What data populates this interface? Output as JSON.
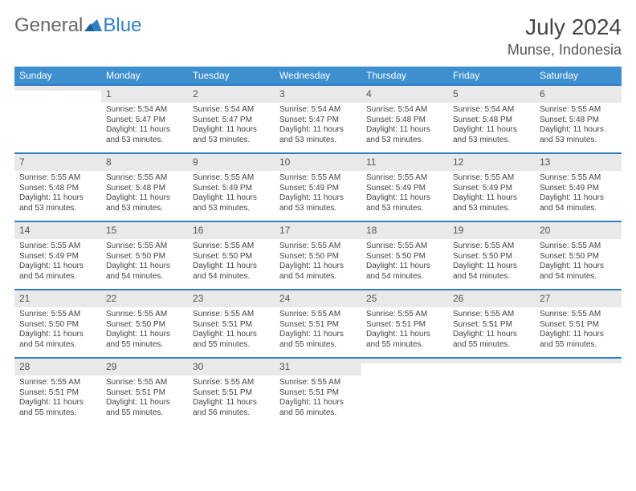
{
  "brand": {
    "part1": "General",
    "part2": "Blue"
  },
  "title": {
    "month": "July 2024",
    "location": "Munse, Indonesia"
  },
  "colors": {
    "header_bg": "#3d8fcf",
    "row_divider": "#2f7fc2",
    "daynum_bg": "#e9e9e9"
  },
  "weekdays": [
    "Sunday",
    "Monday",
    "Tuesday",
    "Wednesday",
    "Thursday",
    "Friday",
    "Saturday"
  ],
  "weeks": [
    [
      null,
      {
        "n": "1",
        "sr": "Sunrise: 5:54 AM",
        "ss": "Sunset: 5:47 PM",
        "dl": "Daylight: 11 hours and 53 minutes."
      },
      {
        "n": "2",
        "sr": "Sunrise: 5:54 AM",
        "ss": "Sunset: 5:47 PM",
        "dl": "Daylight: 11 hours and 53 minutes."
      },
      {
        "n": "3",
        "sr": "Sunrise: 5:54 AM",
        "ss": "Sunset: 5:47 PM",
        "dl": "Daylight: 11 hours and 53 minutes."
      },
      {
        "n": "4",
        "sr": "Sunrise: 5:54 AM",
        "ss": "Sunset: 5:48 PM",
        "dl": "Daylight: 11 hours and 53 minutes."
      },
      {
        "n": "5",
        "sr": "Sunrise: 5:54 AM",
        "ss": "Sunset: 5:48 PM",
        "dl": "Daylight: 11 hours and 53 minutes."
      },
      {
        "n": "6",
        "sr": "Sunrise: 5:55 AM",
        "ss": "Sunset: 5:48 PM",
        "dl": "Daylight: 11 hours and 53 minutes."
      }
    ],
    [
      {
        "n": "7",
        "sr": "Sunrise: 5:55 AM",
        "ss": "Sunset: 5:48 PM",
        "dl": "Daylight: 11 hours and 53 minutes."
      },
      {
        "n": "8",
        "sr": "Sunrise: 5:55 AM",
        "ss": "Sunset: 5:48 PM",
        "dl": "Daylight: 11 hours and 53 minutes."
      },
      {
        "n": "9",
        "sr": "Sunrise: 5:55 AM",
        "ss": "Sunset: 5:49 PM",
        "dl": "Daylight: 11 hours and 53 minutes."
      },
      {
        "n": "10",
        "sr": "Sunrise: 5:55 AM",
        "ss": "Sunset: 5:49 PM",
        "dl": "Daylight: 11 hours and 53 minutes."
      },
      {
        "n": "11",
        "sr": "Sunrise: 5:55 AM",
        "ss": "Sunset: 5:49 PM",
        "dl": "Daylight: 11 hours and 53 minutes."
      },
      {
        "n": "12",
        "sr": "Sunrise: 5:55 AM",
        "ss": "Sunset: 5:49 PM",
        "dl": "Daylight: 11 hours and 53 minutes."
      },
      {
        "n": "13",
        "sr": "Sunrise: 5:55 AM",
        "ss": "Sunset: 5:49 PM",
        "dl": "Daylight: 11 hours and 54 minutes."
      }
    ],
    [
      {
        "n": "14",
        "sr": "Sunrise: 5:55 AM",
        "ss": "Sunset: 5:49 PM",
        "dl": "Daylight: 11 hours and 54 minutes."
      },
      {
        "n": "15",
        "sr": "Sunrise: 5:55 AM",
        "ss": "Sunset: 5:50 PM",
        "dl": "Daylight: 11 hours and 54 minutes."
      },
      {
        "n": "16",
        "sr": "Sunrise: 5:55 AM",
        "ss": "Sunset: 5:50 PM",
        "dl": "Daylight: 11 hours and 54 minutes."
      },
      {
        "n": "17",
        "sr": "Sunrise: 5:55 AM",
        "ss": "Sunset: 5:50 PM",
        "dl": "Daylight: 11 hours and 54 minutes."
      },
      {
        "n": "18",
        "sr": "Sunrise: 5:55 AM",
        "ss": "Sunset: 5:50 PM",
        "dl": "Daylight: 11 hours and 54 minutes."
      },
      {
        "n": "19",
        "sr": "Sunrise: 5:55 AM",
        "ss": "Sunset: 5:50 PM",
        "dl": "Daylight: 11 hours and 54 minutes."
      },
      {
        "n": "20",
        "sr": "Sunrise: 5:55 AM",
        "ss": "Sunset: 5:50 PM",
        "dl": "Daylight: 11 hours and 54 minutes."
      }
    ],
    [
      {
        "n": "21",
        "sr": "Sunrise: 5:55 AM",
        "ss": "Sunset: 5:50 PM",
        "dl": "Daylight: 11 hours and 54 minutes."
      },
      {
        "n": "22",
        "sr": "Sunrise: 5:55 AM",
        "ss": "Sunset: 5:50 PM",
        "dl": "Daylight: 11 hours and 55 minutes."
      },
      {
        "n": "23",
        "sr": "Sunrise: 5:55 AM",
        "ss": "Sunset: 5:51 PM",
        "dl": "Daylight: 11 hours and 55 minutes."
      },
      {
        "n": "24",
        "sr": "Sunrise: 5:55 AM",
        "ss": "Sunset: 5:51 PM",
        "dl": "Daylight: 11 hours and 55 minutes."
      },
      {
        "n": "25",
        "sr": "Sunrise: 5:55 AM",
        "ss": "Sunset: 5:51 PM",
        "dl": "Daylight: 11 hours and 55 minutes."
      },
      {
        "n": "26",
        "sr": "Sunrise: 5:55 AM",
        "ss": "Sunset: 5:51 PM",
        "dl": "Daylight: 11 hours and 55 minutes."
      },
      {
        "n": "27",
        "sr": "Sunrise: 5:55 AM",
        "ss": "Sunset: 5:51 PM",
        "dl": "Daylight: 11 hours and 55 minutes."
      }
    ],
    [
      {
        "n": "28",
        "sr": "Sunrise: 5:55 AM",
        "ss": "Sunset: 5:51 PM",
        "dl": "Daylight: 11 hours and 55 minutes."
      },
      {
        "n": "29",
        "sr": "Sunrise: 5:55 AM",
        "ss": "Sunset: 5:51 PM",
        "dl": "Daylight: 11 hours and 55 minutes."
      },
      {
        "n": "30",
        "sr": "Sunrise: 5:55 AM",
        "ss": "Sunset: 5:51 PM",
        "dl": "Daylight: 11 hours and 56 minutes."
      },
      {
        "n": "31",
        "sr": "Sunrise: 5:55 AM",
        "ss": "Sunset: 5:51 PM",
        "dl": "Daylight: 11 hours and 56 minutes."
      },
      null,
      null,
      null
    ]
  ]
}
